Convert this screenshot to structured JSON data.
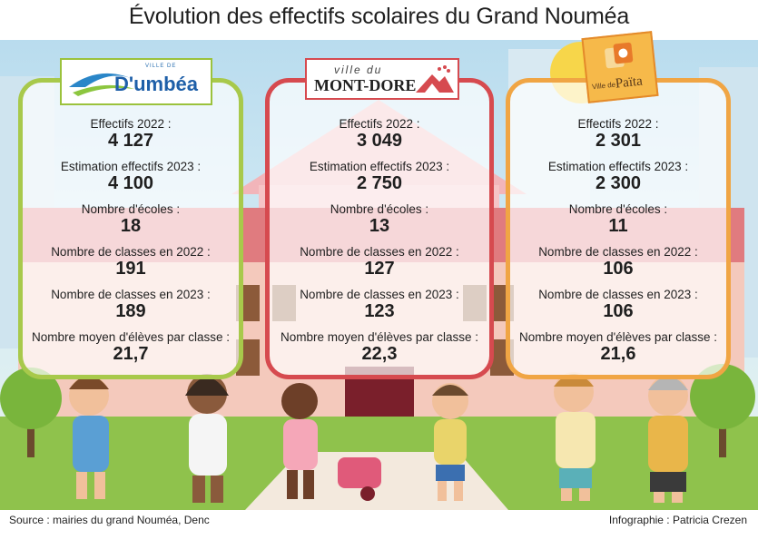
{
  "title": "Évolution des effectifs scolaires du Grand Nouméa",
  "source": "Source : mairies du grand Nouméa, Denc",
  "credit": "Infographie : Patricia Crezen",
  "colors": {
    "dumbea": "#a8c94b",
    "montdore": "#d64a4f",
    "paita": "#f0a544"
  },
  "logos": {
    "dumbea": {
      "prefix": "VILLE DE",
      "name": "D'umbéa"
    },
    "montdore": {
      "prefix": "ville du",
      "name": "MONT-DORE"
    },
    "paita": {
      "prefix": "Ville de",
      "name": "Païta"
    }
  },
  "chart_data": {
    "type": "table",
    "title": "Évolution des effectifs scolaires du Grand Nouméa",
    "columns": [
      "Dumbéa",
      "Mont-Dore",
      "Païta"
    ],
    "rows": [
      {
        "label": "Effectifs 2022 :",
        "values": [
          "4 127",
          "3 049",
          "2 301"
        ]
      },
      {
        "label": "Estimation effectifs 2023 :",
        "values": [
          "4 100",
          "2 750",
          "2 300"
        ]
      },
      {
        "label": "Nombre d'écoles :",
        "values": [
          "18",
          "13",
          "11"
        ]
      },
      {
        "label": "Nombre de classes en 2022 :",
        "values": [
          "191",
          "127",
          "106"
        ]
      },
      {
        "label": "Nombre de classes en 2023 :",
        "values": [
          "189",
          "123",
          "106"
        ]
      },
      {
        "label": "Nombre moyen d'élèves par classe :",
        "values": [
          "21,7",
          "22,3",
          "21,6"
        ]
      }
    ]
  }
}
